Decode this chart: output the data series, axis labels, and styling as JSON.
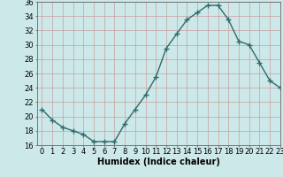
{
  "x": [
    0,
    1,
    2,
    3,
    4,
    5,
    6,
    7,
    8,
    9,
    10,
    11,
    12,
    13,
    14,
    15,
    16,
    17,
    18,
    19,
    20,
    21,
    22,
    23
  ],
  "y": [
    21,
    19.5,
    18.5,
    18,
    17.5,
    16.5,
    16.5,
    16.5,
    19,
    21,
    23,
    25.5,
    29.5,
    31.5,
    33.5,
    34.5,
    35.5,
    35.5,
    33.5,
    30.5,
    30,
    27.5,
    25,
    24
  ],
  "line_color": "#2d6b6b",
  "marker": "+",
  "marker_size": 4,
  "marker_linewidth": 1.0,
  "bg_color": "#cde8e8",
  "grid_color": "#c8a0a0",
  "xlabel": "Humidex (Indice chaleur)",
  "ylim": [
    16,
    36
  ],
  "xlim": [
    -0.5,
    23
  ],
  "yticks": [
    16,
    18,
    20,
    22,
    24,
    26,
    28,
    30,
    32,
    34,
    36
  ],
  "xticks": [
    0,
    1,
    2,
    3,
    4,
    5,
    6,
    7,
    8,
    9,
    10,
    11,
    12,
    13,
    14,
    15,
    16,
    17,
    18,
    19,
    20,
    21,
    22,
    23
  ],
  "xlabel_fontsize": 7,
  "tick_fontsize": 6,
  "line_width": 1.0
}
